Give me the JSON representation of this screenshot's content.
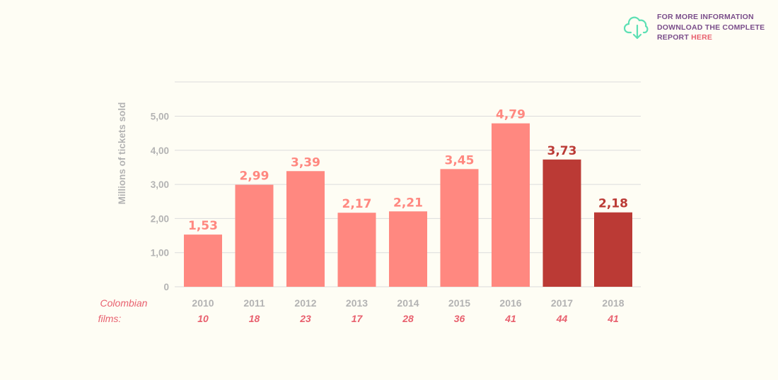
{
  "info": {
    "line1": "FOR MORE INFORMATION",
    "line2": "DOWNLOAD THE COMPLETE",
    "line3": "REPORT",
    "link": "HERE",
    "icon": "cloud-download-icon"
  },
  "colors": {
    "background": "#fefdf4",
    "bar": "#ff8880",
    "bar_highlight": "#bb3a35",
    "films": "#e8606e",
    "axis_text": "#b3b3b3",
    "grid": "#dcdcdc",
    "info_text": "#7a4d8a",
    "icon": "#5de0b4"
  },
  "films_label": [
    "Colombian",
    "films:"
  ],
  "chart_data": {
    "type": "bar",
    "title": "",
    "xlabel": "",
    "ylabel": "Millions of tickets sold",
    "categories": [
      "2010",
      "2011",
      "2012",
      "2013",
      "2014",
      "2015",
      "2016",
      "2017",
      "2018"
    ],
    "values": [
      1.53,
      2.99,
      3.39,
      2.17,
      2.21,
      3.45,
      4.79,
      3.73,
      2.18
    ],
    "value_labels": [
      "1,53",
      "2,99",
      "3,39",
      "2,17",
      "2,21",
      "3,45",
      "4,79",
      "3,73",
      "2,18"
    ],
    "highlighted": [
      false,
      false,
      false,
      false,
      false,
      false,
      false,
      true,
      true
    ],
    "colombian_films": [
      "10",
      "18",
      "23",
      "17",
      "28",
      "36",
      "41",
      "44",
      "41"
    ],
    "yticks": [
      0,
      1,
      2,
      3,
      4,
      5
    ],
    "ytick_labels": [
      "0",
      "1,00",
      "2,00",
      "3,00",
      "4,00",
      "5,00"
    ],
    "ylim": [
      0,
      6
    ],
    "grid": true
  }
}
